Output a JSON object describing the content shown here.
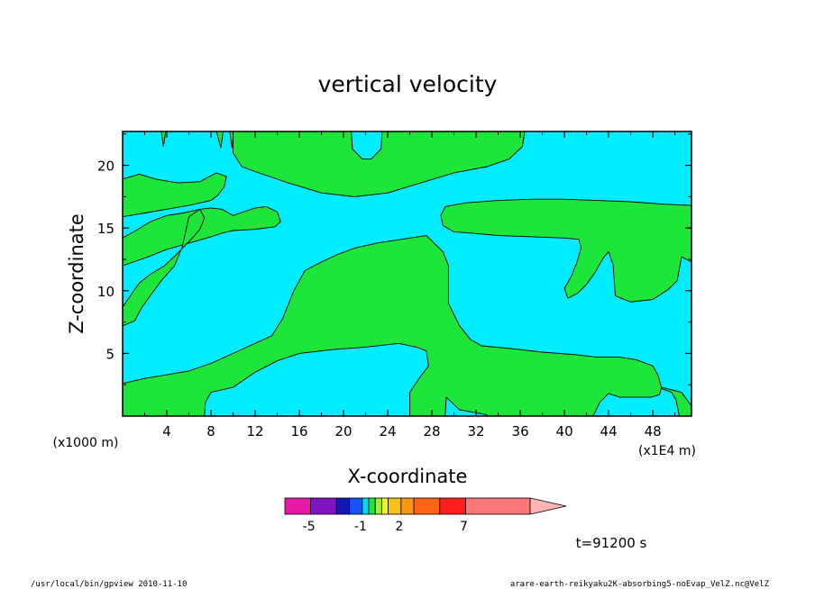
{
  "chart_data": {
    "type": "heatmap",
    "title": "vertical velocity",
    "xlabel": "X-coordinate",
    "ylabel": "Z-coordinate",
    "x_unit": "(x1E4 m)",
    "y_unit": "(x1000 m)",
    "xlim": [
      0,
      51.5
    ],
    "ylim": [
      0,
      22.7
    ],
    "x_ticks": [
      4,
      8,
      12,
      16,
      20,
      24,
      28,
      32,
      36,
      40,
      44,
      48
    ],
    "y_ticks": [
      5,
      10,
      15,
      20
    ],
    "colorbar": {
      "levels": [
        -7,
        -5,
        -3,
        -2,
        -1,
        -0.5,
        0,
        0.5,
        1,
        2,
        3,
        5,
        7,
        12
      ],
      "colors": [
        "#e81aa5",
        "#7f14c4",
        "#1418b4",
        "#1852f0",
        "#00d8f0",
        "#1ce63a",
        "#a0f028",
        "#f2f21e",
        "#f6c018",
        "#fa9610",
        "#ff6414",
        "#ff1e1e",
        "#fc7878",
        "#ffb4b4"
      ],
      "label_values": [
        -5,
        -1,
        2,
        7
      ],
      "labels": [
        "-5",
        "-1",
        "2",
        "7"
      ]
    },
    "regions": {
      "positive_color": "#1ce63a",
      "negative_color": "#00ecff",
      "positive_polygons": [
        [
          [
            3.5,
            22.7
          ],
          [
            3.7,
            21.5
          ],
          [
            3.9,
            22.7
          ]
        ],
        [
          [
            8.5,
            22.7
          ],
          [
            8.9,
            21.4
          ],
          [
            9.1,
            22.7
          ]
        ],
        [
          [
            9.7,
            22.7
          ],
          [
            9.9,
            21.4
          ],
          [
            10.1,
            22.7
          ]
        ],
        [
          [
            10.0,
            22.7
          ],
          [
            10.0,
            21.0
          ],
          [
            10.8,
            19.9
          ],
          [
            12.0,
            19.5
          ],
          [
            15.0,
            18.6
          ],
          [
            18.0,
            17.8
          ],
          [
            21.0,
            17.5
          ],
          [
            24.0,
            17.8
          ],
          [
            27.0,
            18.6
          ],
          [
            30.0,
            19.4
          ],
          [
            33.0,
            19.9
          ],
          [
            35.0,
            20.5
          ],
          [
            36.2,
            21.5
          ],
          [
            36.4,
            22.7
          ],
          [
            30.0,
            22.7
          ],
          [
            23.5,
            22.7
          ],
          [
            23.4,
            21.3
          ],
          [
            22.5,
            20.5
          ],
          [
            21.7,
            20.5
          ],
          [
            20.8,
            21.3
          ],
          [
            20.7,
            22.7
          ]
        ],
        [
          [
            0,
            18.9
          ],
          [
            1.5,
            19.3
          ],
          [
            3.0,
            18.9
          ],
          [
            5.0,
            18.6
          ],
          [
            7.0,
            18.7
          ],
          [
            8.5,
            19.4
          ],
          [
            9.4,
            19.1
          ],
          [
            9.2,
            18.3
          ],
          [
            8.6,
            17.6
          ],
          [
            8.0,
            17.2
          ],
          [
            6.0,
            16.8
          ],
          [
            4.0,
            16.5
          ],
          [
            2.0,
            16.2
          ],
          [
            0,
            15.9
          ]
        ],
        [
          [
            0,
            14.2
          ],
          [
            1.2,
            14.8
          ],
          [
            2.5,
            15.5
          ],
          [
            4.0,
            16.0
          ],
          [
            5.5,
            16.2
          ],
          [
            7.0,
            16.5
          ],
          [
            8.0,
            16.6
          ],
          [
            9.0,
            16.5
          ],
          [
            10.0,
            16.0
          ],
          [
            11.0,
            16.3
          ],
          [
            12.0,
            16.6
          ],
          [
            13.0,
            16.7
          ],
          [
            14.0,
            16.3
          ],
          [
            14.3,
            15.5
          ],
          [
            13.8,
            15.1
          ],
          [
            12.0,
            14.9
          ],
          [
            10.0,
            14.8
          ],
          [
            9.0,
            14.6
          ],
          [
            8.0,
            14.3
          ],
          [
            6.0,
            13.8
          ],
          [
            4.0,
            13.3
          ],
          [
            2.0,
            12.6
          ],
          [
            0,
            12.0
          ]
        ],
        [
          [
            0,
            8.7
          ],
          [
            0.7,
            9.6
          ],
          [
            1.5,
            10.6
          ],
          [
            2.5,
            11.3
          ],
          [
            3.8,
            12.0
          ],
          [
            5.0,
            13.0
          ],
          [
            6.2,
            14.1
          ],
          [
            7.0,
            14.9
          ],
          [
            7.4,
            15.8
          ],
          [
            7.0,
            16.5
          ],
          [
            6.0,
            15.9
          ],
          [
            5.4,
            13.5
          ],
          [
            4.7,
            12.0
          ],
          [
            3.5,
            10.8
          ],
          [
            2.5,
            9.6
          ],
          [
            1.7,
            8.6
          ],
          [
            1.1,
            7.6
          ],
          [
            0,
            7.2
          ]
        ],
        [
          [
            0,
            2.6
          ],
          [
            2.0,
            3.0
          ],
          [
            4.0,
            3.3
          ],
          [
            6.0,
            3.6
          ],
          [
            8.0,
            4.2
          ],
          [
            10.0,
            5.0
          ],
          [
            12.0,
            5.8
          ],
          [
            13.5,
            6.4
          ],
          [
            14.5,
            7.8
          ],
          [
            15.5,
            10.0
          ],
          [
            16.5,
            11.6
          ],
          [
            18.0,
            12.3
          ],
          [
            19.5,
            12.9
          ],
          [
            21.0,
            13.4
          ],
          [
            23.0,
            13.8
          ],
          [
            26.0,
            14.2
          ],
          [
            27.5,
            14.4
          ],
          [
            28.2,
            13.8
          ],
          [
            29.0,
            13.1
          ],
          [
            29.5,
            12.0
          ],
          [
            29.5,
            9.0
          ],
          [
            30.5,
            7.2
          ],
          [
            31.5,
            6.1
          ],
          [
            32.5,
            5.6
          ],
          [
            35.0,
            5.4
          ],
          [
            38.0,
            5.1
          ],
          [
            41.0,
            4.9
          ],
          [
            43.0,
            4.7
          ],
          [
            45.0,
            4.7
          ],
          [
            46.5,
            4.5
          ],
          [
            48.0,
            4.0
          ],
          [
            48.5,
            3.2
          ],
          [
            48.8,
            2.2
          ],
          [
            49.7,
            1.9
          ],
          [
            50.1,
            1.3
          ],
          [
            50.4,
            0
          ],
          [
            51.5,
            0
          ],
          [
            51.5,
            0.8
          ],
          [
            50.6,
            1.9
          ],
          [
            49.7,
            2.1
          ],
          [
            48.8,
            2.3
          ],
          [
            48.6,
            1.7
          ],
          [
            47.8,
            1.5
          ],
          [
            45.0,
            1.5
          ],
          [
            44.0,
            1.8
          ],
          [
            43.2,
            1.1
          ],
          [
            42.6,
            0
          ],
          [
            33.0,
            0
          ],
          [
            33.0,
            0.1
          ],
          [
            30.5,
            0.5
          ],
          [
            29.8,
            1.1
          ],
          [
            29.3,
            1.5
          ],
          [
            29.2,
            0
          ],
          [
            26.0,
            0
          ],
          [
            26.0,
            1.9
          ],
          [
            27.0,
            3.2
          ],
          [
            27.7,
            4.0
          ],
          [
            27.5,
            5.2
          ],
          [
            26.6,
            5.5
          ],
          [
            25.0,
            5.8
          ],
          [
            22.0,
            5.5
          ],
          [
            19.0,
            5.3
          ],
          [
            16.0,
            5.0
          ],
          [
            14.0,
            4.4
          ],
          [
            12.0,
            3.5
          ],
          [
            10.0,
            2.3
          ],
          [
            8.0,
            1.9
          ],
          [
            7.5,
            1.1
          ],
          [
            7.4,
            0
          ],
          [
            0,
            0
          ]
        ],
        [
          [
            29.2,
            16.7
          ],
          [
            31.0,
            17.0
          ],
          [
            34.0,
            17.2
          ],
          [
            37.0,
            17.3
          ],
          [
            40.0,
            17.3
          ],
          [
            43.0,
            17.2
          ],
          [
            46.0,
            17.1
          ],
          [
            49.0,
            16.9
          ],
          [
            51.5,
            16.8
          ],
          [
            51.5,
            12.3
          ],
          [
            50.6,
            12.7
          ],
          [
            50.2,
            10.8
          ],
          [
            49.4,
            10.1
          ],
          [
            48.0,
            9.3
          ],
          [
            46.0,
            9.1
          ],
          [
            44.6,
            9.6
          ],
          [
            44.4,
            12.1
          ],
          [
            44.0,
            13.1
          ],
          [
            43.5,
            12.6
          ],
          [
            42.8,
            11.5
          ],
          [
            42.0,
            10.5
          ],
          [
            41.2,
            9.8
          ],
          [
            40.3,
            9.4
          ],
          [
            40.0,
            10.2
          ],
          [
            40.6,
            11.1
          ],
          [
            41.1,
            12.2
          ],
          [
            41.5,
            13.4
          ],
          [
            41.3,
            14.1
          ],
          [
            40.0,
            14.2
          ],
          [
            37.0,
            14.3
          ],
          [
            34.0,
            14.4
          ],
          [
            31.5,
            14.6
          ],
          [
            30.0,
            14.7
          ],
          [
            29.0,
            15.2
          ],
          [
            28.8,
            16.0
          ]
        ]
      ]
    }
  },
  "time_label": "t=91200 s",
  "footer_left": "/usr/local/bin/gpview  2010-11-10",
  "footer_right": "arare-earth-reikyaku2K-absorbing5-noEvap_VelZ.nc@VelZ"
}
